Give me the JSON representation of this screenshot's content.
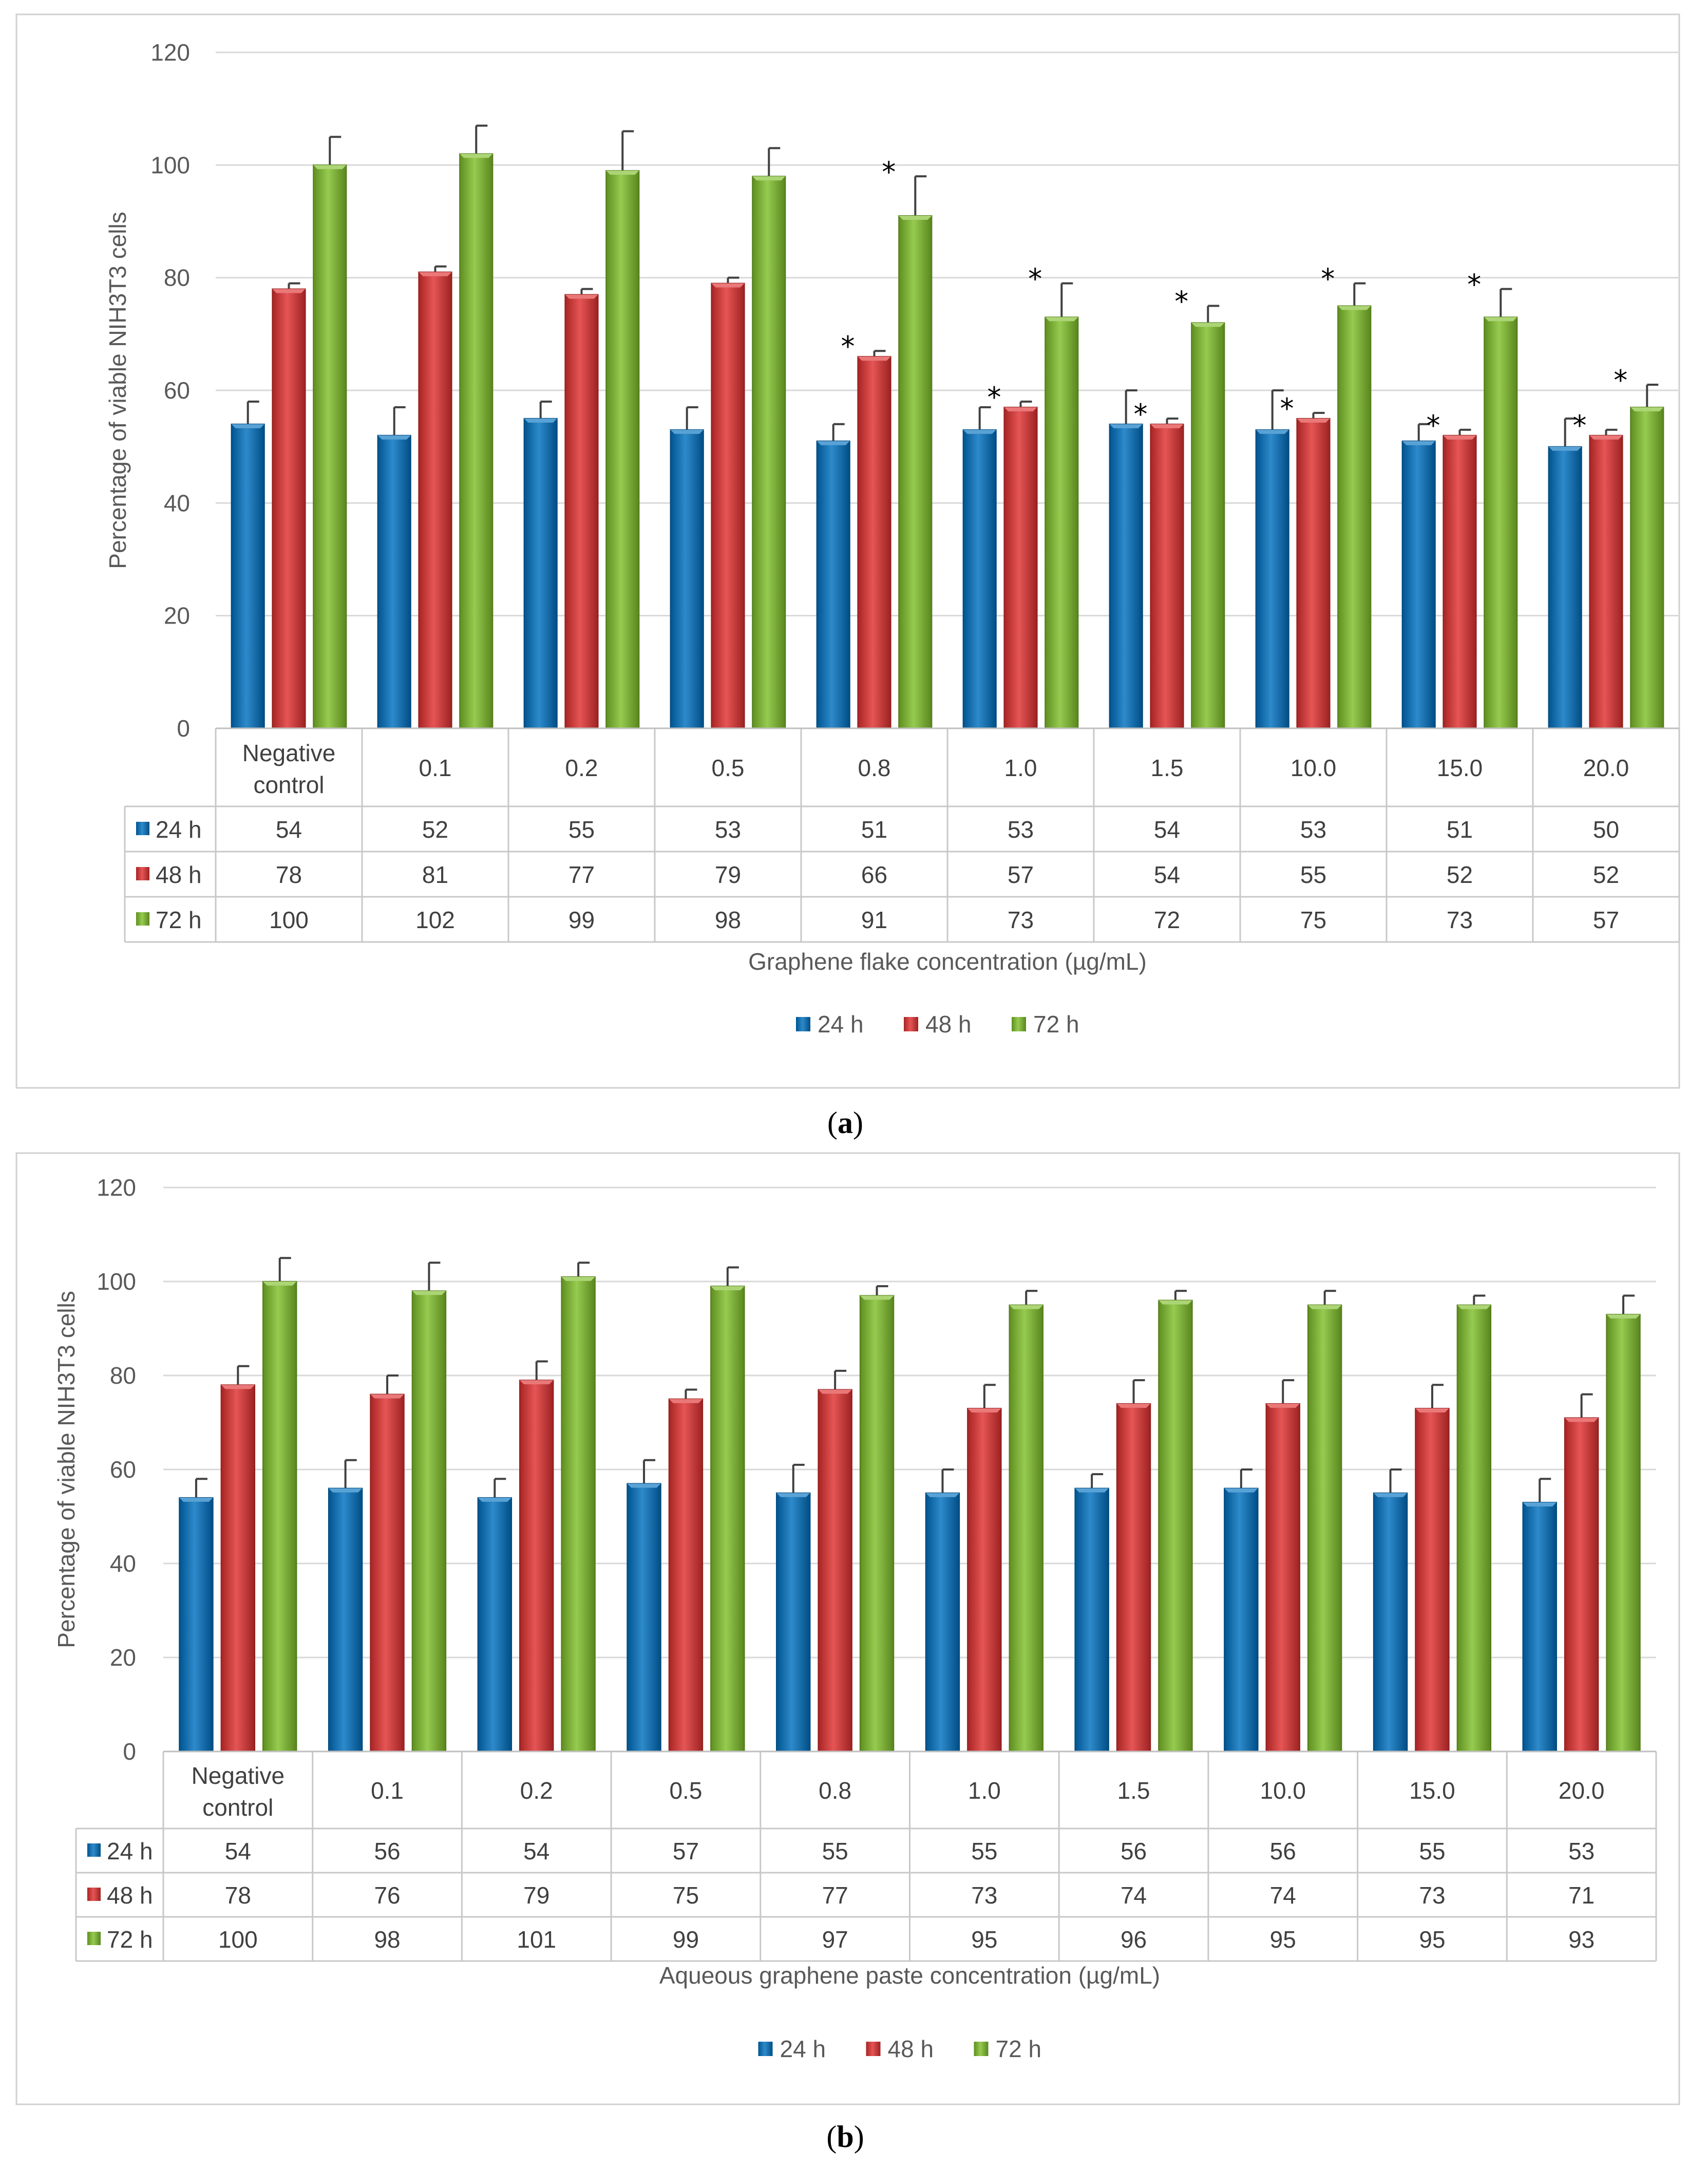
{
  "series_colors": {
    "24 h": "#0070C0",
    "48 h": "#E03030",
    "72 h": "#7FBF2A"
  },
  "chart_data": [
    {
      "type": "bar",
      "panel_label": "a",
      "title": "",
      "ylabel": "Percentage of viable NIH3T3 cells",
      "xlabel": "Graphene flake concentration (µg/mL)",
      "ylim": [
        0,
        120
      ],
      "yticks": [
        0,
        20,
        40,
        60,
        80,
        100,
        120
      ],
      "categories": [
        [
          "Negative",
          "control"
        ],
        [
          "0.1"
        ],
        [
          "0.2"
        ],
        [
          "0.5"
        ],
        [
          "0.8"
        ],
        [
          "1.0"
        ],
        [
          "1.5"
        ],
        [
          "10.0"
        ],
        [
          "15.0"
        ],
        [
          "20.0"
        ]
      ],
      "series": [
        {
          "name": "24 h",
          "values": [
            54,
            52,
            55,
            53,
            51,
            53,
            54,
            53,
            51,
            50
          ],
          "errors": [
            4,
            5,
            3,
            4,
            3,
            4,
            6,
            7,
            3,
            5
          ],
          "stars": [
            false,
            false,
            false,
            false,
            false,
            false,
            false,
            false,
            false,
            false
          ]
        },
        {
          "name": "48 h",
          "values": [
            78,
            81,
            77,
            79,
            66,
            57,
            54,
            55,
            52,
            52
          ],
          "errors": [
            1,
            1,
            1,
            1,
            1,
            1,
            1,
            1,
            1,
            1
          ],
          "stars": [
            false,
            false,
            false,
            false,
            true,
            true,
            true,
            true,
            true,
            true
          ]
        },
        {
          "name": "72 h",
          "values": [
            100,
            102,
            99,
            98,
            91,
            73,
            72,
            75,
            73,
            57
          ],
          "errors": [
            5,
            5,
            7,
            5,
            7,
            6,
            3,
            4,
            5,
            4
          ],
          "stars": [
            false,
            false,
            false,
            false,
            true,
            true,
            true,
            true,
            true,
            true
          ]
        }
      ],
      "star_symbol": "*",
      "legend": [
        "24 h",
        "48 h",
        "72 h"
      ],
      "legend_position": "bottom-center",
      "grid": true
    },
    {
      "type": "bar",
      "panel_label": "b",
      "title": "",
      "ylabel": "Percentage of viable NIH3T3 cells",
      "xlabel": "Aqueous graphene paste concentration (µg/mL)",
      "ylim": [
        0,
        120
      ],
      "yticks": [
        0,
        20,
        40,
        60,
        80,
        100,
        120
      ],
      "categories": [
        [
          "Negative",
          "control"
        ],
        [
          "0.1"
        ],
        [
          "0.2"
        ],
        [
          "0.5"
        ],
        [
          "0.8"
        ],
        [
          "1.0"
        ],
        [
          "1.5"
        ],
        [
          "10.0"
        ],
        [
          "15.0"
        ],
        [
          "20.0"
        ]
      ],
      "series": [
        {
          "name": "24 h",
          "values": [
            54,
            56,
            54,
            57,
            55,
            55,
            56,
            56,
            55,
            53
          ],
          "errors": [
            4,
            6,
            4,
            5,
            6,
            5,
            3,
            4,
            5,
            5
          ],
          "stars": [
            false,
            false,
            false,
            false,
            false,
            false,
            false,
            false,
            false,
            false
          ]
        },
        {
          "name": "48 h",
          "values": [
            78,
            76,
            79,
            75,
            77,
            73,
            74,
            74,
            73,
            71
          ],
          "errors": [
            4,
            4,
            4,
            2,
            4,
            5,
            5,
            5,
            5,
            5
          ],
          "stars": [
            false,
            false,
            false,
            false,
            false,
            false,
            false,
            false,
            false,
            false
          ]
        },
        {
          "name": "72 h",
          "values": [
            100,
            98,
            101,
            99,
            97,
            95,
            96,
            95,
            95,
            93
          ],
          "errors": [
            5,
            6,
            3,
            4,
            2,
            3,
            2,
            3,
            2,
            4
          ],
          "stars": [
            false,
            false,
            false,
            false,
            false,
            false,
            false,
            false,
            false,
            false
          ]
        }
      ],
      "star_symbol": "*",
      "legend": [
        "24 h",
        "48 h",
        "72 h"
      ],
      "legend_position": "bottom-center",
      "grid": true
    }
  ]
}
